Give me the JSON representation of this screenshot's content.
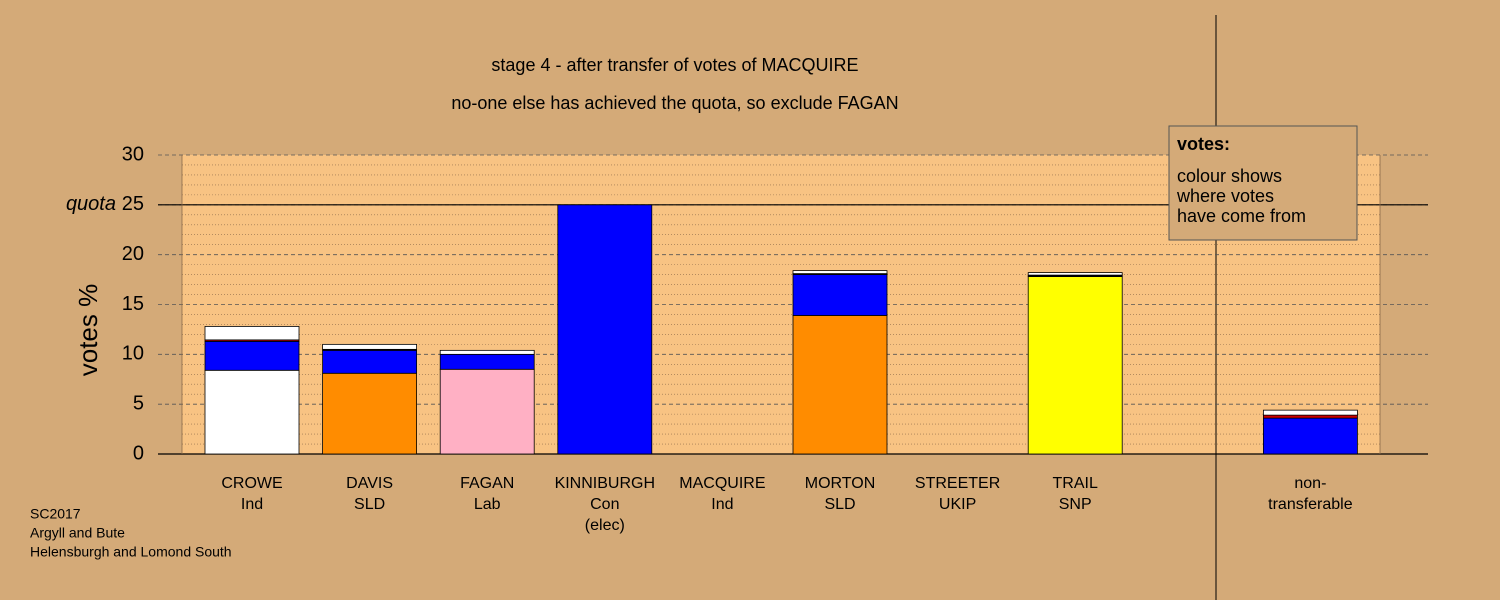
{
  "chart_data": {
    "type": "stacked_bar",
    "title": "stage 4 - after transfer of votes of MACQUIRE",
    "subtitle": "no-one else has achieved the quota, so exclude FAGAN",
    "y_label": "votes %",
    "quota_label": "quota",
    "quota": 25,
    "ylim": [
      0,
      30
    ],
    "yticks": [
      0,
      5,
      10,
      15,
      20,
      25,
      30
    ],
    "yminor": [
      1,
      2,
      3,
      4,
      6,
      7,
      8,
      9,
      11,
      12,
      13,
      14,
      16,
      17,
      18,
      19,
      21,
      22,
      23,
      24,
      26,
      27,
      28,
      29
    ],
    "grid": true,
    "categories": [
      [
        "CROWE",
        "Ind"
      ],
      [
        "DAVIS",
        "SLD"
      ],
      [
        "FAGAN",
        "Lab"
      ],
      [
        "KINNIBURGH",
        "Con",
        "(elec)"
      ],
      [
        "MACQUIRE",
        "Ind"
      ],
      [
        "MORTON",
        "SLD"
      ],
      [
        "STREETER",
        "UKIP"
      ],
      [
        "TRAIL",
        "SNP"
      ],
      [
        "non-",
        "transferable"
      ]
    ],
    "stacks": [
      [
        {
          "value": 8.4,
          "color": "#ffffff"
        },
        {
          "value": 2.9,
          "color": "#0000ff"
        },
        {
          "value": 0.15,
          "color": "#cc0000"
        },
        {
          "value": 1.35,
          "color": "#ffffff"
        }
      ],
      [
        {
          "value": 8.1,
          "color": "#ff8c00"
        },
        {
          "value": 2.3,
          "color": "#0000ff"
        },
        {
          "value": 0.1,
          "color": "#000000"
        },
        {
          "value": 0.5,
          "color": "#ffffff"
        }
      ],
      [
        {
          "value": 8.5,
          "color": "#ffb0c4"
        },
        {
          "value": 1.5,
          "color": "#0000ff"
        },
        {
          "value": 0.4,
          "color": "#ffffff"
        }
      ],
      [
        {
          "value": 25,
          "color": "#0000ff"
        }
      ],
      [],
      [
        {
          "value": 13.9,
          "color": "#ff8c00"
        },
        {
          "value": 4.1,
          "color": "#0000ff"
        },
        {
          "value": 0.1,
          "color": "#000000"
        },
        {
          "value": 0.3,
          "color": "#ffffff"
        }
      ],
      [],
      [
        {
          "value": 17.8,
          "color": "#ffff00"
        },
        {
          "value": 0.15,
          "color": "#000000"
        },
        {
          "value": 0.25,
          "color": "#ffffff"
        }
      ],
      [
        {
          "value": 3.6,
          "color": "#0000ff"
        },
        {
          "value": 0.3,
          "color": "#cc0000"
        },
        {
          "value": 0.5,
          "color": "#ffffff"
        }
      ]
    ],
    "legend": {
      "title": "votes:",
      "lines": [
        "colour shows",
        "where votes",
        "have come from"
      ]
    },
    "footer": [
      "SC2017",
      "Argyll and Bute",
      "Helensburgh and Lomond South"
    ]
  }
}
